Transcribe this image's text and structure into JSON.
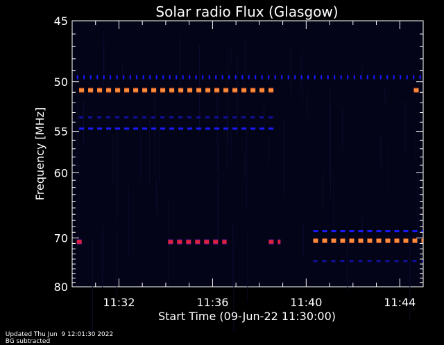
{
  "chart_data": {
    "type": "heatmap",
    "title": "Solar radio Flux (Glasgow)",
    "ylabel": "Frequency [MHz]",
    "xlabel": "Start Time (09-Jun-22 11:30:00)",
    "y_ticks": [
      "45",
      "50",
      "55",
      "60",
      "70",
      "80"
    ],
    "y_tick_values": [
      45,
      50,
      55,
      60,
      70,
      80
    ],
    "x_ticks": [
      "11:32",
      "11:36",
      "11:40",
      "11:44"
    ],
    "x_tick_minutes": [
      2,
      6,
      10,
      14
    ],
    "xlim_minutes": [
      0,
      15
    ],
    "ylim_mhz": [
      45,
      80
    ],
    "colors": {
      "background": "#000000",
      "plot_background": "#040418",
      "blue": "#1a1aff",
      "dim_blue": "#1010a0",
      "orange": "#ff8c3c",
      "red": "#e0203a",
      "purple": "#6a1aa0"
    },
    "features": [
      {
        "name": "band-49.6",
        "freq": 49.6,
        "t0": 0.2,
        "t1": 15,
        "color": "blue",
        "style": "ticks"
      },
      {
        "name": "band-50.8",
        "freq": 50.8,
        "t0": 0.3,
        "t1": 8.8,
        "color": "orange",
        "style": "dashes"
      },
      {
        "name": "band-50.8-end",
        "freq": 50.8,
        "t0": 14.6,
        "t1": 14.9,
        "color": "orange",
        "style": "dashes"
      },
      {
        "name": "band-53.5",
        "freq": 53.5,
        "t0": 0.3,
        "t1": 8.8,
        "color": "dim_blue",
        "style": "dashes"
      },
      {
        "name": "band-54.7",
        "freq": 54.7,
        "t0": 0.3,
        "t1": 8.8,
        "color": "blue",
        "style": "dashes"
      },
      {
        "name": "band-68.8",
        "freq": 68.8,
        "t0": 10.3,
        "t1": 15,
        "color": "blue",
        "style": "dashes"
      },
      {
        "name": "band-70.5",
        "freq": 70.5,
        "t0": 10.3,
        "t1": 15,
        "color": "orange",
        "style": "dashes"
      },
      {
        "name": "band-74.4",
        "freq": 74.4,
        "t0": 10.3,
        "t1": 15,
        "color": "dim_blue",
        "style": "dashes"
      },
      {
        "name": "burst-70.7-a",
        "freq": 70.7,
        "t0": 0.2,
        "t1": 0.6,
        "color": "red",
        "style": "dashes"
      },
      {
        "name": "burst-70.7-b",
        "freq": 70.7,
        "t0": 4.1,
        "t1": 6.6,
        "color": "red",
        "style": "dashes"
      },
      {
        "name": "burst-70.7-c",
        "freq": 70.7,
        "t0": 8.4,
        "t1": 8.9,
        "color": "red",
        "style": "dashes"
      }
    ]
  },
  "footer": {
    "updated": "Updated Thu Jun  9 12:01:30 2022",
    "note": "BG subtracted"
  }
}
